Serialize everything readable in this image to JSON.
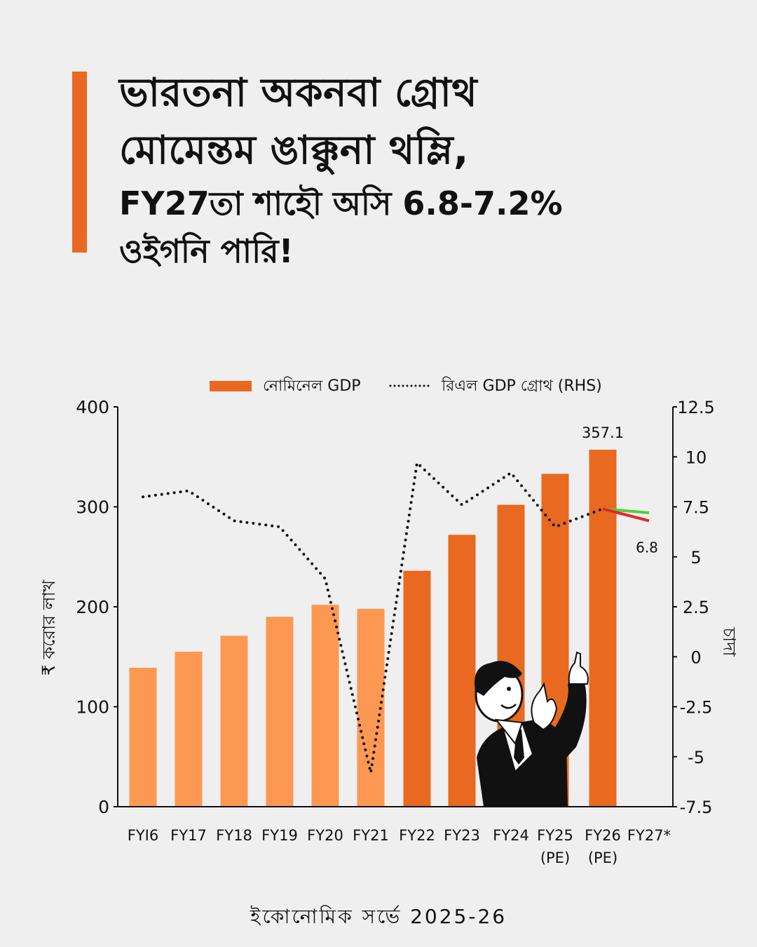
{
  "headline": {
    "line1": "ভারতনা অকনবা গ্রোথ",
    "line2": "মোমেন্তম ঙাক্কুনা থম্লি,",
    "line3": "FY27তা শাহৌ অসি 6.8-7.2%",
    "line4": "ওইগনি পারি!"
  },
  "footer": "ইকোনোমিক সর্ভে 2025-26",
  "colors": {
    "accent": "#e8691f",
    "bar_light": "#fd9853",
    "bar_dark": "#e8691f",
    "projection_high": "#4cd137",
    "projection_low": "#e8242a"
  },
  "illustration": "businessman-pointing-up",
  "chart_data": {
    "type": "bar",
    "categories": [
      "FYI6",
      "FY17",
      "FY18",
      "FY19",
      "FY20",
      "FY21",
      "FY22",
      "FY23",
      "FY24",
      "FY25\n(PE)",
      "FY26\n(PE)",
      "FY27*"
    ],
    "series": [
      {
        "name": "নোমিনেল GDP",
        "axis": "left",
        "values": [
          139,
          155,
          171,
          190,
          202,
          198,
          236,
          272,
          302,
          333,
          357.1,
          null
        ]
      },
      {
        "name": "রিএল GDP গ্রোথ (RHS)",
        "axis": "right",
        "type": "line",
        "style": "dotted",
        "values": [
          8.0,
          8.3,
          6.8,
          6.5,
          3.9,
          -5.8,
          9.7,
          7.6,
          9.2,
          6.5,
          7.4,
          null
        ]
      }
    ],
    "projection": {
      "from": 7.4,
      "high": 7.2,
      "low": 6.8,
      "low_label": "6.8"
    },
    "data_labels": [
      {
        "category_index": 10,
        "text": "357.1"
      }
    ],
    "ylabel": "₹ করোর লাখ",
    "y2label": "চাদা",
    "ylim": [
      0,
      400
    ],
    "y2lim": [
      -7.5,
      12.5
    ],
    "yticks": [
      "0",
      "100",
      "200",
      "300",
      "400"
    ],
    "y2ticks": [
      "-7.5",
      "-5",
      "-2.5",
      "0",
      "2.5",
      "5",
      "7.5",
      "10",
      "12.5"
    ],
    "light_bar_count": 6,
    "legend": "top",
    "grid": false
  }
}
